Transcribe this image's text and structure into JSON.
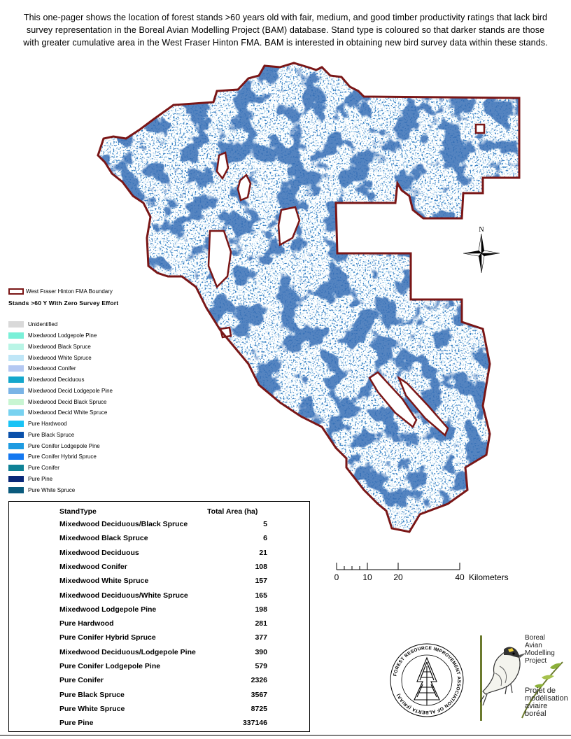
{
  "intro": {
    "line1": "This one-pager shows the location of forest stands >60 years old with fair, medium, and good timber productivity ratings that lack bird",
    "line2": "survey representation in the Boreal Avian Modelling Project (BAM) database. Stand type is coloured so that darker stands are those",
    "line3": "with greater cumulative area in the West Fraser Hinton FMA. BAM is interested in obtaining new bird survey data within these stands."
  },
  "legend": {
    "boundary_label": "West Fraser Hinton FMA Boundary",
    "boundary_color": "#7a1616",
    "title": "Stands >60 Y With Zero Survey Effort",
    "items": [
      {
        "label": "Unidentified",
        "color": "#d9d9d9"
      },
      {
        "label": "Mixedwood Lodgepole Pine",
        "color": "#7af0d8"
      },
      {
        "label": "Mixedwood Black Spruce",
        "color": "#b9f5e6"
      },
      {
        "label": "Mixedwood White Spruce",
        "color": "#bfe6f7"
      },
      {
        "label": "Mixedwood Conifer",
        "color": "#b4c8f2"
      },
      {
        "label": "Mixedwood Deciduous",
        "color": "#14a7cc"
      },
      {
        "label": "Mixedwood Decid Lodgepole Pine",
        "color": "#7ab4e6"
      },
      {
        "label": "Mixedwood Decid Black Spruce",
        "color": "#c8f5d2"
      },
      {
        "label": "Mixedwood Decid White Spruce",
        "color": "#78d2f0"
      },
      {
        "label": "Pure Hardwood",
        "color": "#19c3f5"
      },
      {
        "label": "Pure Black Spruce",
        "color": "#0a50aa"
      },
      {
        "label": "Pure Conifer Lodgepole Pine",
        "color": "#1e9be1"
      },
      {
        "label": "Pure Conifer Hybrid Spruce",
        "color": "#1478f0"
      },
      {
        "label": "Pure Conifer",
        "color": "#0f8296"
      },
      {
        "label": "Pure Pine",
        "color": "#0a2878"
      },
      {
        "label": "Pure White Spruce",
        "color": "#0a5a7d"
      }
    ]
  },
  "table": {
    "col1": "StandType",
    "col2": "Total Area (ha)",
    "rows": [
      {
        "name": "Mixedwood Deciduous/Black Spruce",
        "area": "5"
      },
      {
        "name": "Mixedwood Black Spruce",
        "area": "6"
      },
      {
        "name": "Mixedwood Deciduous",
        "area": "21"
      },
      {
        "name": "Mixedwood Conifer",
        "area": "108"
      },
      {
        "name": "Mixedwood White Spruce",
        "area": "157"
      },
      {
        "name": "Mixedwood Deciduous/White Spruce",
        "area": "165"
      },
      {
        "name": "Mixedwood Lodgepole Pine",
        "area": "198"
      },
      {
        "name": "Pure Hardwood",
        "area": "281"
      },
      {
        "name": "Pure Conifer Hybrid Spruce",
        "area": "377"
      },
      {
        "name": "Mixedwood Deciduous/Lodgepole Pine",
        "area": "390"
      },
      {
        "name": "Pure Conifer Lodgepole Pine",
        "area": "579"
      },
      {
        "name": "Pure Conifer",
        "area": "2326"
      },
      {
        "name": "Pure Black Spruce",
        "area": "3567"
      },
      {
        "name": "Pure White Spruce",
        "area": "8725"
      },
      {
        "name": "Pure Pine",
        "area": "337146"
      }
    ]
  },
  "scale": {
    "ticks": [
      "0",
      "10",
      "20",
      "40"
    ],
    "unit": "Kilometers"
  },
  "north": {
    "label": "N"
  },
  "logos": {
    "fria": {
      "ring_text": "FOREST RESOURCE IMPROVEMENT ASSOCIATION OF ALBERTA (FRIAA)",
      "icon": "conifer-tree-logo-icon"
    },
    "bam": {
      "line1": "Boreal",
      "line2": "Avian",
      "line3": "Modelling",
      "line4": "Project",
      "line5": "Projet de",
      "line6": "modélisation",
      "line7": "aviaire",
      "line8": "boréal",
      "icon": "songbird-logo-icon"
    }
  }
}
